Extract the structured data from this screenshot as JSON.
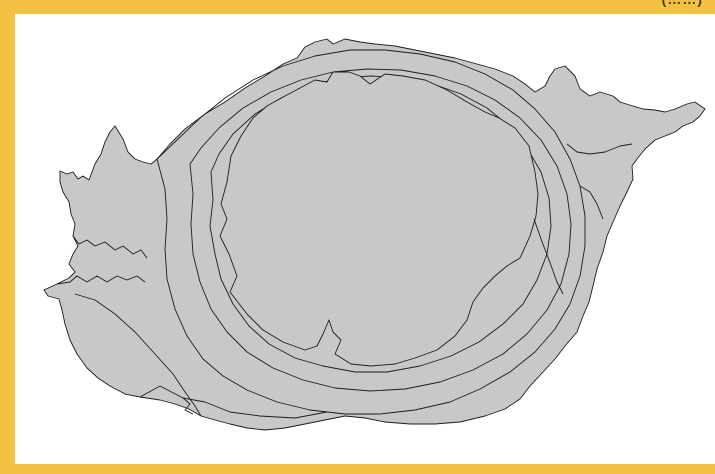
{
  "header": {
    "fragment": "(……)"
  },
  "map": {
    "fill_color": "#c8c8c8",
    "stroke_color": "#1c1c1c",
    "background_color": "#ffffff",
    "frame_color": "#f4c242"
  }
}
